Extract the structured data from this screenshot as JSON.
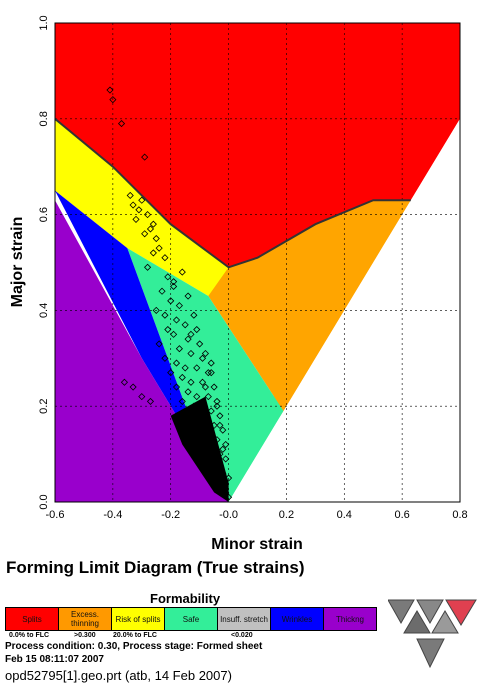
{
  "chart_data": {
    "type": "scatter",
    "title": "Forming Limit Diagram (True strains)",
    "xlabel": "Minor strain",
    "ylabel": "Major strain",
    "xlim": [
      -0.6,
      0.8
    ],
    "ylim": [
      0,
      1.0
    ],
    "xticks": [
      "-0.6",
      "-0.4",
      "-0.2",
      "-0.0",
      "0.2",
      "0.4",
      "0.6",
      "0.8"
    ],
    "yticks": [
      "0.0",
      "0.2",
      "0.4",
      "0.6",
      "0.8",
      "1.0"
    ],
    "grid": true,
    "flc_curve": {
      "x": [
        -0.6,
        -0.4,
        -0.2,
        0.0,
        0.1,
        0.3,
        0.5,
        0.63
      ],
      "y": [
        0.8,
        0.7,
        0.58,
        0.49,
        0.51,
        0.58,
        0.63,
        0.63
      ]
    },
    "regions": [
      {
        "name": "Splits",
        "color": "#ff0000"
      },
      {
        "name": "Excess. thinning",
        "color": "#ffa500"
      },
      {
        "name": "Risk of splits",
        "color": "#ffff00"
      },
      {
        "name": "Safe",
        "color": "#33ee99"
      },
      {
        "name": "Insuff. stretch",
        "color": "#c0c0c0"
      },
      {
        "name": "Wrinkles",
        "color": "#0000ff"
      },
      {
        "name": "Thickng",
        "color": "#9900cc"
      }
    ],
    "points": [
      [
        -0.41,
        0.86
      ],
      [
        -0.4,
        0.84
      ],
      [
        -0.37,
        0.79
      ],
      [
        -0.29,
        0.72
      ],
      [
        -0.34,
        0.64
      ],
      [
        -0.33,
        0.62
      ],
      [
        -0.31,
        0.61
      ],
      [
        -0.3,
        0.63
      ],
      [
        -0.28,
        0.6
      ],
      [
        -0.32,
        0.59
      ],
      [
        -0.27,
        0.57
      ],
      [
        -0.25,
        0.55
      ],
      [
        -0.26,
        0.52
      ],
      [
        -0.24,
        0.53
      ],
      [
        -0.22,
        0.51
      ],
      [
        -0.16,
        0.48
      ],
      [
        -0.28,
        0.49
      ],
      [
        -0.21,
        0.47
      ],
      [
        -0.19,
        0.45
      ],
      [
        -0.23,
        0.44
      ],
      [
        -0.2,
        0.42
      ],
      [
        -0.17,
        0.41
      ],
      [
        -0.25,
        0.4
      ],
      [
        -0.22,
        0.39
      ],
      [
        -0.18,
        0.38
      ],
      [
        -0.15,
        0.37
      ],
      [
        -0.12,
        0.39
      ],
      [
        -0.21,
        0.36
      ],
      [
        -0.19,
        0.35
      ],
      [
        -0.14,
        0.34
      ],
      [
        -0.1,
        0.33
      ],
      [
        -0.24,
        0.33
      ],
      [
        -0.17,
        0.32
      ],
      [
        -0.13,
        0.31
      ],
      [
        -0.09,
        0.3
      ],
      [
        -0.22,
        0.3
      ],
      [
        -0.18,
        0.29
      ],
      [
        -0.15,
        0.28
      ],
      [
        -0.11,
        0.28
      ],
      [
        -0.07,
        0.27
      ],
      [
        -0.2,
        0.27
      ],
      [
        -0.16,
        0.26
      ],
      [
        -0.13,
        0.25
      ],
      [
        -0.09,
        0.25
      ],
      [
        -0.05,
        0.24
      ],
      [
        -0.18,
        0.24
      ],
      [
        -0.14,
        0.23
      ],
      [
        -0.11,
        0.22
      ],
      [
        -0.07,
        0.22
      ],
      [
        -0.04,
        0.21
      ],
      [
        -0.16,
        0.21
      ],
      [
        -0.12,
        0.2
      ],
      [
        -0.09,
        0.19
      ],
      [
        -0.06,
        0.19
      ],
      [
        -0.03,
        0.18
      ],
      [
        -0.14,
        0.18
      ],
      [
        -0.11,
        0.17
      ],
      [
        -0.08,
        0.16
      ],
      [
        -0.05,
        0.16
      ],
      [
        -0.02,
        0.15
      ],
      [
        -0.12,
        0.15
      ],
      [
        -0.09,
        0.14
      ],
      [
        -0.06,
        0.13
      ],
      [
        -0.04,
        0.13
      ],
      [
        -0.01,
        0.12
      ],
      [
        -0.1,
        0.12
      ],
      [
        -0.08,
        0.11
      ],
      [
        -0.05,
        0.1
      ],
      [
        -0.03,
        0.1
      ],
      [
        -0.01,
        0.09
      ],
      [
        -0.08,
        0.09
      ],
      [
        -0.06,
        0.08
      ],
      [
        -0.04,
        0.07
      ],
      [
        -0.02,
        0.06
      ],
      [
        0.0,
        0.05
      ],
      [
        -0.05,
        0.05
      ],
      [
        -0.03,
        0.04
      ],
      [
        -0.02,
        0.03
      ],
      [
        -0.01,
        0.02
      ],
      [
        0.0,
        0.01
      ],
      [
        -0.36,
        0.25
      ],
      [
        -0.33,
        0.24
      ],
      [
        -0.3,
        0.22
      ],
      [
        -0.27,
        0.21
      ],
      [
        -0.08,
        0.24
      ],
      [
        -0.06,
        0.27
      ],
      [
        -0.04,
        0.2
      ],
      [
        -0.03,
        0.16
      ],
      [
        -0.02,
        0.11
      ],
      [
        -0.13,
        0.35
      ],
      [
        -0.11,
        0.36
      ],
      [
        -0.08,
        0.31
      ],
      [
        -0.06,
        0.29
      ],
      [
        -0.14,
        0.43
      ],
      [
        -0.19,
        0.46
      ],
      [
        -0.26,
        0.58
      ],
      [
        -0.29,
        0.56
      ]
    ]
  },
  "legend": {
    "title": "Formability",
    "items": [
      {
        "label": "Splits",
        "color": "#ff0000"
      },
      {
        "label": "Excess. thinning",
        "color": "#ff9900"
      },
      {
        "label": "Risk of splits",
        "color": "#ffff00"
      },
      {
        "label": "Safe",
        "color": "#33ee99"
      },
      {
        "label": "Insuff. stretch",
        "color": "#c0c0c0"
      },
      {
        "label": "Wrinkles",
        "color": "#0000ff"
      },
      {
        "label": "Thickng",
        "color": "#9900cc"
      }
    ],
    "notes": [
      "0.0% to FLC",
      ">0.300",
      "20.0% to FLC",
      "<0.020"
    ]
  },
  "process": {
    "condition": "Process condition: 0.30,  Process stage: Formed sheet",
    "timestamp": "Feb 15 08:11:07 2007",
    "file": "opd52795[1].geo.prt (atb, 14 Feb 2007)"
  }
}
